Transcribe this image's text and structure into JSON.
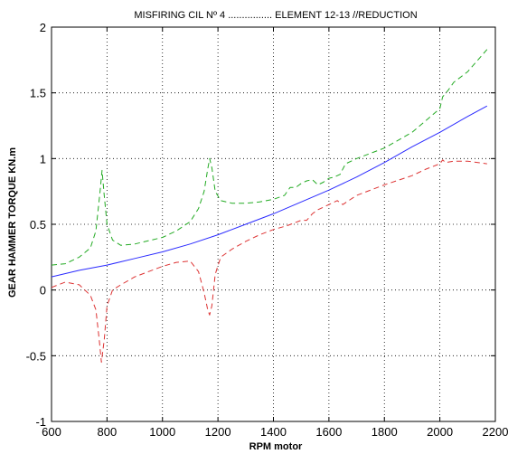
{
  "chart_data": {
    "type": "line",
    "title": "MISFIRING CIL Nº 4 ................ ELEMENT 12-13 //REDUCTION",
    "xlabel": "RPM motor",
    "ylabel": "GEAR HAMMER TORQUE KN.m",
    "xlim": [
      600,
      2200
    ],
    "ylim": [
      -1,
      2
    ],
    "xticks": [
      "600",
      "800",
      "1000",
      "1200",
      "1400",
      "1600",
      "1800",
      "2000",
      "2200"
    ],
    "yticks": [
      "-1",
      "-0.5",
      "0",
      "0.5",
      "1",
      "1.5",
      "2"
    ],
    "grid": true,
    "series": [
      {
        "color": "#2a2aff",
        "style": "solid",
        "x": [
          600,
          700,
          800,
          900,
          1000,
          1100,
          1200,
          1300,
          1400,
          1500,
          1600,
          1700,
          1800,
          1900,
          2000,
          2100,
          2170
        ],
        "y": [
          0.1,
          0.15,
          0.19,
          0.24,
          0.29,
          0.35,
          0.42,
          0.5,
          0.58,
          0.67,
          0.76,
          0.86,
          0.97,
          1.09,
          1.2,
          1.32,
          1.4
        ]
      },
      {
        "color": "#22aa22",
        "style": "dashed",
        "x": [
          600,
          650,
          700,
          740,
          760,
          775,
          782,
          790,
          800,
          820,
          850,
          900,
          1000,
          1050,
          1100,
          1130,
          1150,
          1163,
          1170,
          1178,
          1190,
          1210,
          1250,
          1300,
          1350,
          1400,
          1440,
          1460,
          1480,
          1500,
          1520,
          1540,
          1560,
          1580,
          1600,
          1620,
          1640,
          1660,
          1700,
          1800,
          1900,
          1950,
          2000,
          2010,
          2030,
          2050,
          2100,
          2170
        ],
        "y": [
          0.19,
          0.2,
          0.25,
          0.32,
          0.45,
          0.75,
          0.91,
          0.72,
          0.5,
          0.38,
          0.34,
          0.35,
          0.4,
          0.45,
          0.52,
          0.62,
          0.75,
          0.92,
          1.0,
          0.93,
          0.75,
          0.68,
          0.66,
          0.66,
          0.67,
          0.69,
          0.72,
          0.78,
          0.78,
          0.81,
          0.83,
          0.84,
          0.8,
          0.82,
          0.85,
          0.86,
          0.88,
          0.96,
          1.0,
          1.08,
          1.2,
          1.29,
          1.38,
          1.47,
          1.52,
          1.58,
          1.66,
          1.83
        ]
      },
      {
        "color": "#dd3333",
        "style": "dashed",
        "x": [
          600,
          650,
          700,
          740,
          760,
          772,
          780,
          790,
          800,
          820,
          850,
          900,
          1000,
          1050,
          1100,
          1130,
          1150,
          1163,
          1170,
          1178,
          1190,
          1210,
          1250,
          1300,
          1350,
          1400,
          1450,
          1500,
          1520,
          1540,
          1560,
          1600,
          1630,
          1650,
          1700,
          1800,
          1900,
          1950,
          2000,
          2010,
          2020,
          2050,
          2100,
          2170
        ],
        "y": [
          0.02,
          0.06,
          0.04,
          -0.04,
          -0.15,
          -0.38,
          -0.55,
          -0.38,
          -0.12,
          0.0,
          0.04,
          0.1,
          0.18,
          0.21,
          0.22,
          0.14,
          -0.02,
          -0.15,
          -0.19,
          -0.12,
          0.12,
          0.25,
          0.31,
          0.37,
          0.42,
          0.46,
          0.49,
          0.53,
          0.53,
          0.58,
          0.61,
          0.65,
          0.68,
          0.65,
          0.72,
          0.8,
          0.87,
          0.92,
          0.96,
          0.99,
          0.97,
          0.98,
          0.98,
          0.96
        ]
      }
    ]
  }
}
